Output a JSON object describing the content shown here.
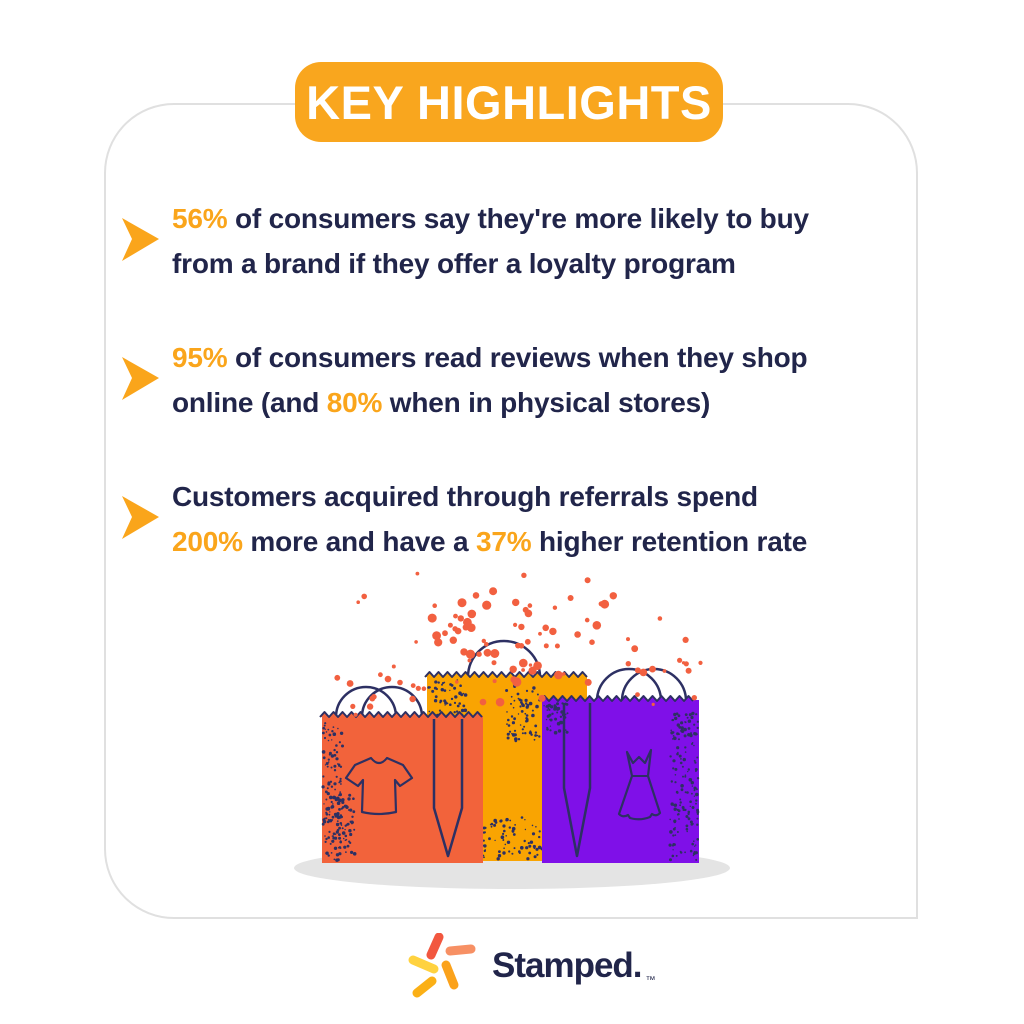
{
  "page": {
    "background": "#FFFFFF"
  },
  "colors": {
    "accent_orange": "#FAA51B",
    "navy_text": "#21254A",
    "card_border": "#E0E0E0",
    "badge_bg": "#F9A61E",
    "badge_text": "#FFFFFF"
  },
  "badge": {
    "label": "KEY HIGHLIGHTS"
  },
  "highlights": {
    "bullets": [
      {
        "segments": [
          {
            "text": "56%",
            "highlight": true
          },
          {
            "text": " of consumers say they're more likely to buy",
            "highlight": false
          },
          {
            "break": true
          },
          {
            "text": "from a brand if they offer a loyalty program",
            "highlight": false
          }
        ]
      },
      {
        "segments": [
          {
            "text": "95%",
            "highlight": true
          },
          {
            "text": " of consumers read reviews when they shop",
            "highlight": false
          },
          {
            "break": true
          },
          {
            "text": "online (and ",
            "highlight": false
          },
          {
            "text": "80%",
            "highlight": true
          },
          {
            "text": " when in physical stores)",
            "highlight": false
          }
        ]
      },
      {
        "segments": [
          {
            "text": "Customers acquired through referrals spend",
            "highlight": false
          },
          {
            "break": true
          },
          {
            "text": "200%",
            "highlight": true
          },
          {
            "text": " more and have a ",
            "highlight": false
          },
          {
            "text": "37%",
            "highlight": true
          },
          {
            "text": " higher retention rate",
            "highlight": false
          }
        ]
      }
    ]
  },
  "illustration": {
    "name": "three shopping bags with confetti",
    "bag_left_color": "#F2633B",
    "bag_middle_color": "#F9A402",
    "bag_right_color": "#7F10E8",
    "outline_color": "#2D3063",
    "confetti_color": "#F26040",
    "shadow_color": "#E4E4E4",
    "left_bag_icon": "t-shirt",
    "right_bag_icon": "dress"
  },
  "footer": {
    "wordmark": "Stamped.",
    "trademark": "™",
    "logo_dash_colors": [
      "#F2573F",
      "#F79064",
      "#FBA21B",
      "#FFD23F",
      "#FBB016"
    ]
  }
}
